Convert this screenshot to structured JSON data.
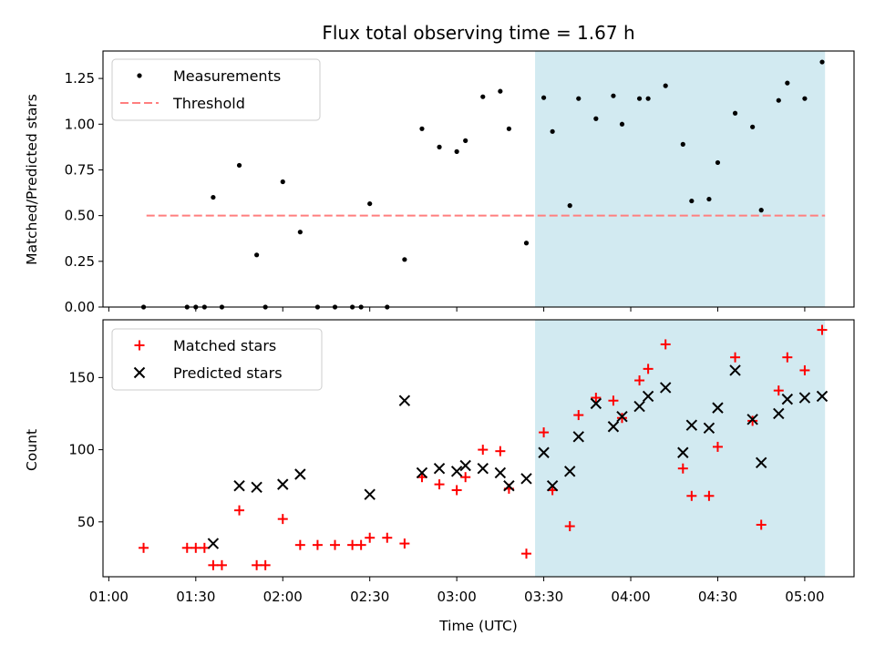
{
  "chart_data": [
    {
      "type": "scatter",
      "title": "Flux total observing time = 1.67 h",
      "ylabel": "Matched/Predicted stars",
      "ylim": [
        0,
        1.4
      ],
      "yticks": [
        "0.00",
        "0.25",
        "0.50",
        "0.75",
        "1.00",
        "1.25"
      ],
      "xlim": [
        "00:58",
        "05:17"
      ],
      "highlight_span": {
        "start": "03:27",
        "end": "05:07",
        "color": "#add8e6"
      },
      "legend": {
        "placement": "upper-left",
        "entries": [
          "Measurements",
          "Threshold"
        ]
      },
      "series": [
        {
          "name": "Measurements",
          "marker": "dot",
          "color": "#000000",
          "points": [
            [
              "01:12",
              0.0
            ],
            [
              "01:27",
              0.0
            ],
            [
              "01:30",
              0.0
            ],
            [
              "01:33",
              0.0
            ],
            [
              "01:36",
              0.6
            ],
            [
              "01:39",
              0.0
            ],
            [
              "01:45",
              0.775
            ],
            [
              "01:51",
              0.285
            ],
            [
              "01:54",
              0.0
            ],
            [
              "02:00",
              0.685
            ],
            [
              "02:06",
              0.41
            ],
            [
              "02:12",
              0.0
            ],
            [
              "02:18",
              0.0
            ],
            [
              "02:24",
              0.0
            ],
            [
              "02:27",
              0.0
            ],
            [
              "02:30",
              0.565
            ],
            [
              "02:36",
              0.0
            ],
            [
              "02:42",
              0.26
            ],
            [
              "02:48",
              0.975
            ],
            [
              "02:54",
              0.875
            ],
            [
              "03:00",
              0.85
            ],
            [
              "03:03",
              0.91
            ],
            [
              "03:09",
              1.15
            ],
            [
              "03:15",
              1.18
            ],
            [
              "03:18",
              0.975
            ],
            [
              "03:24",
              0.35
            ],
            [
              "03:30",
              1.145
            ],
            [
              "03:33",
              0.96
            ],
            [
              "03:39",
              0.555
            ],
            [
              "03:42",
              1.14
            ],
            [
              "03:48",
              1.03
            ],
            [
              "03:54",
              1.155
            ],
            [
              "03:57",
              1.0
            ],
            [
              "04:03",
              1.14
            ],
            [
              "04:06",
              1.14
            ],
            [
              "04:12",
              1.21
            ],
            [
              "04:18",
              0.89
            ],
            [
              "04:21",
              0.58
            ],
            [
              "04:27",
              0.59
            ],
            [
              "04:30",
              0.79
            ],
            [
              "04:36",
              1.06
            ],
            [
              "04:42",
              0.985
            ],
            [
              "04:45",
              0.53
            ],
            [
              "04:51",
              1.13
            ],
            [
              "04:54",
              1.225
            ],
            [
              "05:00",
              1.14
            ],
            [
              "05:06",
              1.34
            ]
          ]
        },
        {
          "name": "Threshold",
          "marker": "dashed-line",
          "color": "#ff7f7f",
          "points": [
            [
              "01:13",
              0.5
            ],
            [
              "05:07",
              0.5
            ]
          ]
        }
      ]
    },
    {
      "type": "scatter",
      "xlabel": "Time (UTC)",
      "ylabel": "Count",
      "ylim": [
        12,
        190
      ],
      "yticks": [
        "50",
        "100",
        "150"
      ],
      "xticks": [
        "01:00",
        "01:30",
        "02:00",
        "02:30",
        "03:00",
        "03:30",
        "04:00",
        "04:30",
        "05:00"
      ],
      "xlim": [
        "00:58",
        "05:17"
      ],
      "highlight_span": {
        "start": "03:27",
        "end": "05:07",
        "color": "#add8e6"
      },
      "legend": {
        "placement": "upper-left",
        "entries": [
          "Matched stars",
          "Predicted stars"
        ]
      },
      "series": [
        {
          "name": "Matched stars",
          "marker": "plus",
          "color": "#ff0000",
          "points": [
            [
              "01:12",
              32
            ],
            [
              "01:27",
              32
            ],
            [
              "01:30",
              32
            ],
            [
              "01:33",
              32
            ],
            [
              "01:36",
              20
            ],
            [
              "01:39",
              20
            ],
            [
              "01:45",
              58
            ],
            [
              "01:51",
              20
            ],
            [
              "01:54",
              20
            ],
            [
              "02:00",
              52
            ],
            [
              "02:06",
              34
            ],
            [
              "02:12",
              34
            ],
            [
              "02:18",
              34
            ],
            [
              "02:24",
              34
            ],
            [
              "02:27",
              34
            ],
            [
              "02:30",
              39
            ],
            [
              "02:36",
              39
            ],
            [
              "02:42",
              35
            ],
            [
              "02:48",
              81
            ],
            [
              "02:54",
              76
            ],
            [
              "03:00",
              72
            ],
            [
              "03:03",
              81
            ],
            [
              "03:09",
              100
            ],
            [
              "03:15",
              99
            ],
            [
              "03:18",
              73
            ],
            [
              "03:24",
              28
            ],
            [
              "03:30",
              112
            ],
            [
              "03:33",
              72
            ],
            [
              "03:39",
              47
            ],
            [
              "03:42",
              124
            ],
            [
              "03:48",
              136
            ],
            [
              "03:54",
              134
            ],
            [
              "03:57",
              122
            ],
            [
              "04:03",
              148
            ],
            [
              "04:06",
              156
            ],
            [
              "04:12",
              173
            ],
            [
              "04:18",
              87
            ],
            [
              "04:21",
              68
            ],
            [
              "04:27",
              68
            ],
            [
              "04:30",
              102
            ],
            [
              "04:36",
              164
            ],
            [
              "04:42",
              120
            ],
            [
              "04:45",
              48
            ],
            [
              "04:51",
              141
            ],
            [
              "04:54",
              164
            ],
            [
              "05:00",
              155
            ],
            [
              "05:06",
              183
            ]
          ]
        },
        {
          "name": "Predicted stars",
          "marker": "x",
          "color": "#000000",
          "points": [
            [
              "01:36",
              35
            ],
            [
              "01:45",
              75
            ],
            [
              "01:51",
              74
            ],
            [
              "02:00",
              76
            ],
            [
              "02:06",
              83
            ],
            [
              "02:30",
              69
            ],
            [
              "02:42",
              134
            ],
            [
              "02:48",
              84
            ],
            [
              "02:54",
              87
            ],
            [
              "03:00",
              85
            ],
            [
              "03:03",
              89
            ],
            [
              "03:09",
              87
            ],
            [
              "03:15",
              84
            ],
            [
              "03:18",
              75
            ],
            [
              "03:24",
              80
            ],
            [
              "03:30",
              98
            ],
            [
              "03:33",
              75
            ],
            [
              "03:39",
              85
            ],
            [
              "03:42",
              109
            ],
            [
              "03:48",
              132
            ],
            [
              "03:54",
              116
            ],
            [
              "03:57",
              123
            ],
            [
              "04:03",
              130
            ],
            [
              "04:06",
              137
            ],
            [
              "04:12",
              143
            ],
            [
              "04:18",
              98
            ],
            [
              "04:21",
              117
            ],
            [
              "04:27",
              115
            ],
            [
              "04:30",
              129
            ],
            [
              "04:36",
              155
            ],
            [
              "04:42",
              121
            ],
            [
              "04:45",
              91
            ],
            [
              "04:51",
              125
            ],
            [
              "04:54",
              135
            ],
            [
              "05:00",
              136
            ],
            [
              "05:06",
              137
            ]
          ]
        }
      ]
    }
  ]
}
